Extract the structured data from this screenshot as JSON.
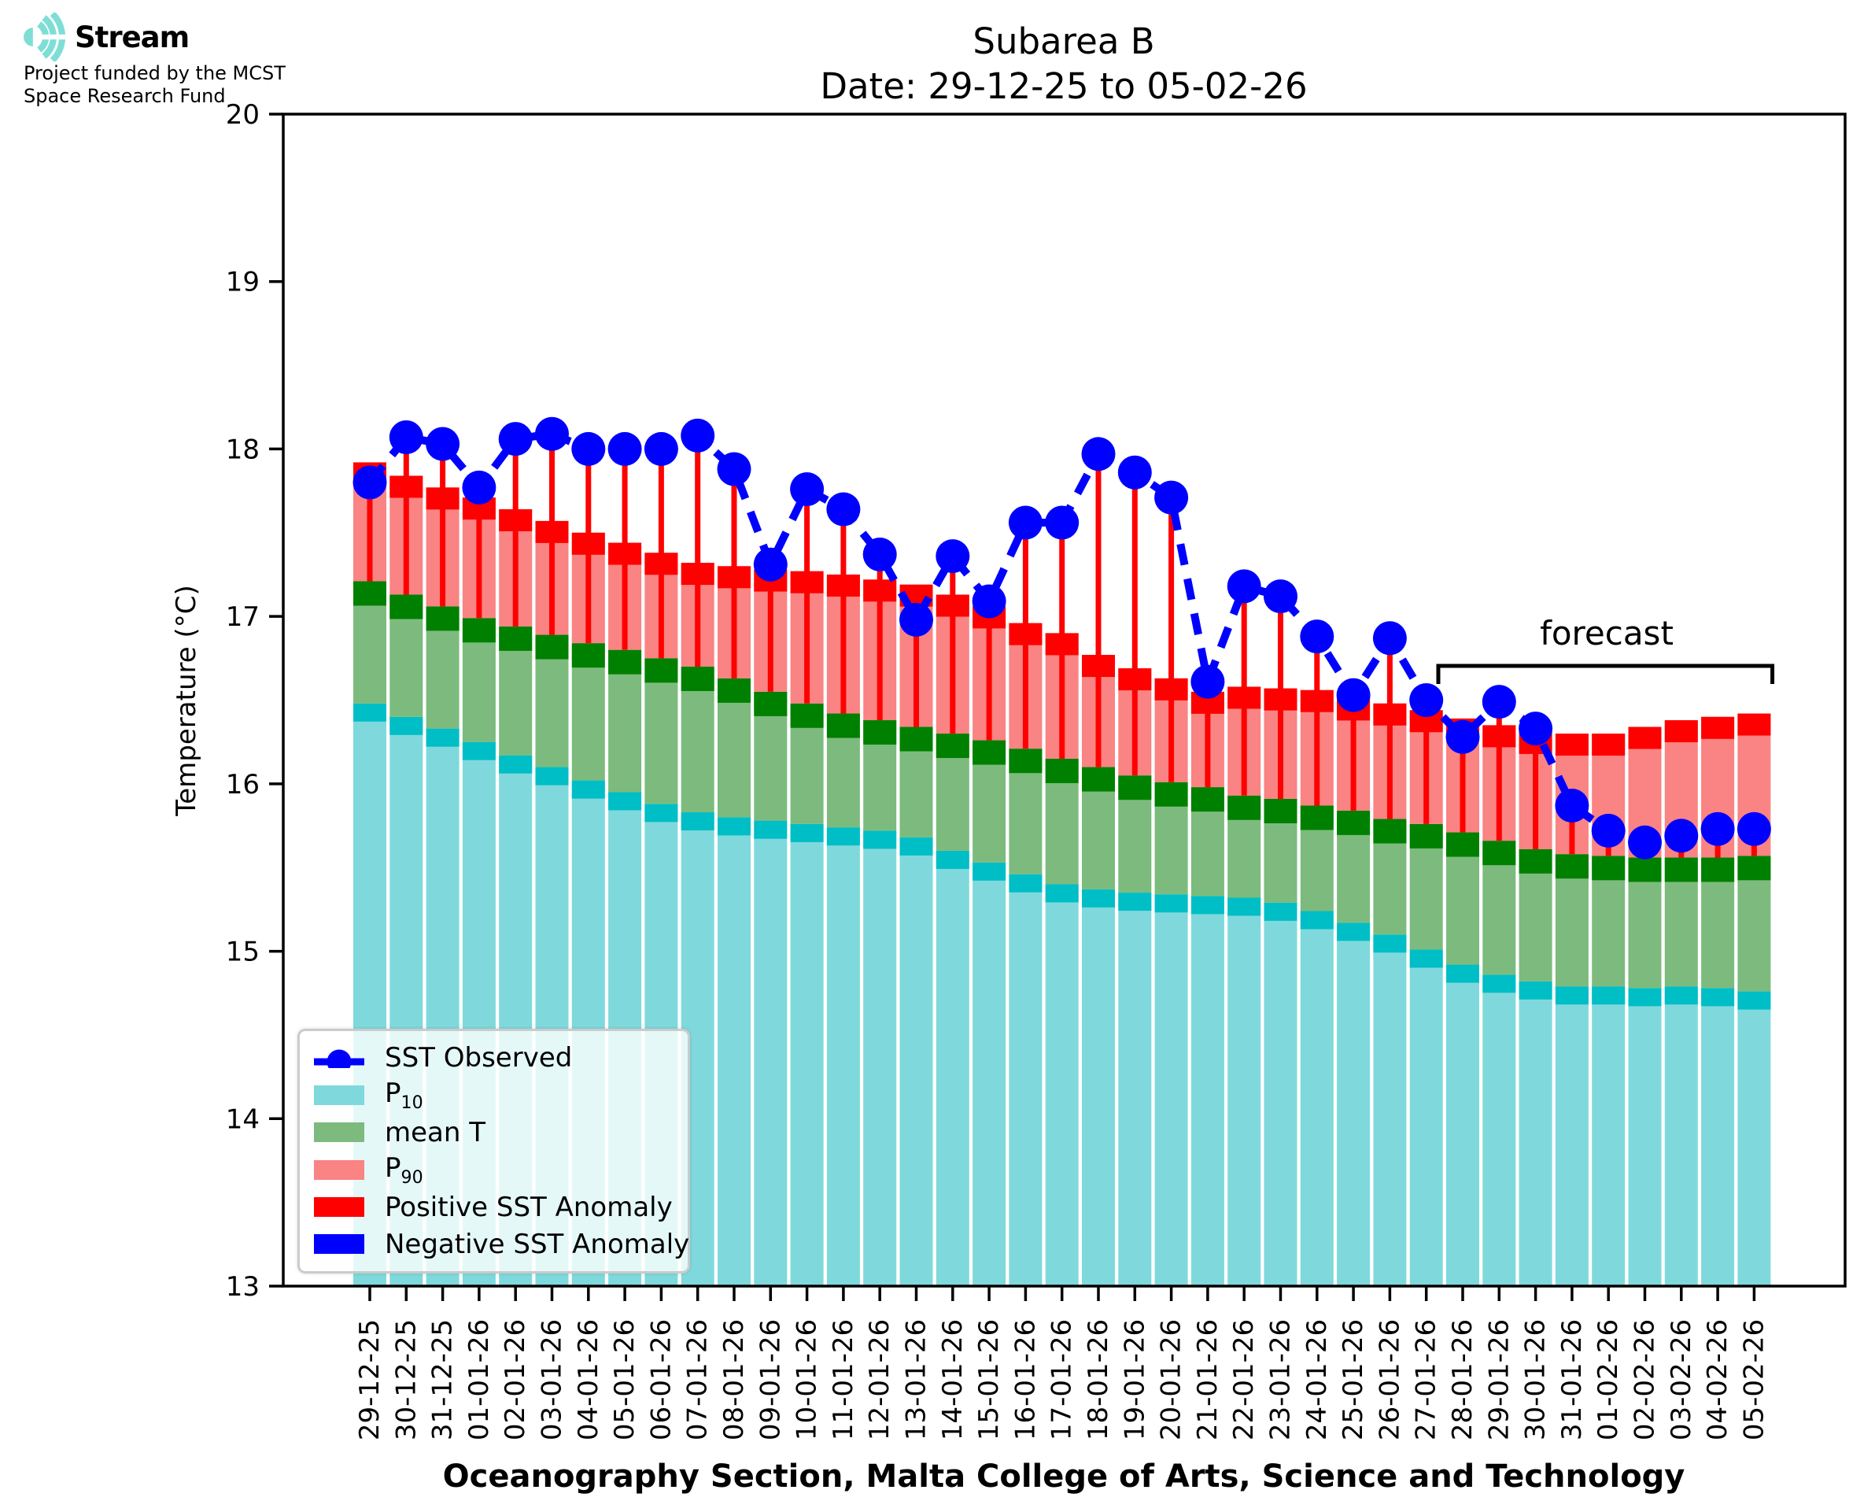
{
  "logo": {
    "brand": "Stream",
    "tagline_line1": "Project funded by the MCST",
    "tagline_line2": "Space Research Fund",
    "icon": "sound-wave-arcs-icon",
    "icon_color": "#7EDED6"
  },
  "title": {
    "line1": "Subarea B",
    "line2": "Date: 29-12-25 to 05-02-26"
  },
  "footer": {
    "text": "Oceanography Section, Malta College of Arts, Science and Technology"
  },
  "legend": {
    "entries": [
      {
        "label": "SST Observed",
        "swatch": "dashed-line-with-dot",
        "color": "#0000FF"
      },
      {
        "label": "P",
        "label_sub": "10",
        "swatch": "patch",
        "color": "#7FD9DC"
      },
      {
        "label": "mean T",
        "swatch": "patch",
        "color": "#7CBB7D"
      },
      {
        "label": "P",
        "label_sub": "90",
        "swatch": "patch",
        "color": "#FA8383"
      },
      {
        "label": "Positive SST Anomaly",
        "swatch": "patch",
        "color": "#FF0000"
      },
      {
        "label": "Negative SST Anomaly",
        "swatch": "patch",
        "color": "#0000FF"
      }
    ]
  },
  "chart_data": {
    "type": "bar",
    "subtype": "stacked-climatology-bands-with-sst-anomaly-stems",
    "title": "Subarea B",
    "subtitle": "Date: 29-12-25 to 05-02-26",
    "ylabel": "Temperature (°C)",
    "xlabel": "Oceanography Section, Malta College of Arts, Science and Technology",
    "ylim": [
      13,
      20
    ],
    "yticks": [
      13,
      14,
      15,
      16,
      17,
      18,
      19,
      20
    ],
    "grid": false,
    "legend_position": "lower left",
    "categories": [
      "29-12-25",
      "30-12-25",
      "31-12-25",
      "01-01-26",
      "02-01-26",
      "03-01-26",
      "04-01-26",
      "05-01-26",
      "06-01-26",
      "07-01-26",
      "08-01-26",
      "09-01-26",
      "10-01-26",
      "11-01-26",
      "12-01-26",
      "13-01-26",
      "14-01-26",
      "15-01-26",
      "16-01-26",
      "17-01-26",
      "18-01-26",
      "19-01-26",
      "20-01-26",
      "21-01-26",
      "22-01-26",
      "23-01-26",
      "24-01-26",
      "25-01-26",
      "26-01-26",
      "27-01-26",
      "28-01-26",
      "29-01-26",
      "30-01-26",
      "31-01-26",
      "01-02-26",
      "02-02-26",
      "03-02-26",
      "04-02-26",
      "05-02-26"
    ],
    "series": [
      {
        "name": "P10",
        "type": "band",
        "fill": "#7FD9DC",
        "cap_color": "#00BEC6",
        "values": [
          16.48,
          16.4,
          16.33,
          16.25,
          16.17,
          16.1,
          16.02,
          15.95,
          15.88,
          15.83,
          15.8,
          15.78,
          15.76,
          15.74,
          15.72,
          15.68,
          15.6,
          15.53,
          15.46,
          15.4,
          15.37,
          15.35,
          15.34,
          15.33,
          15.32,
          15.29,
          15.24,
          15.17,
          15.1,
          15.01,
          14.92,
          14.86,
          14.82,
          14.79,
          14.79,
          14.78,
          14.79,
          14.78,
          14.76
        ]
      },
      {
        "name": "mean T",
        "type": "band",
        "fill": "#7CBB7D",
        "cap_color": "#008000",
        "values": [
          17.21,
          17.13,
          17.06,
          16.99,
          16.94,
          16.89,
          16.84,
          16.8,
          16.75,
          16.7,
          16.63,
          16.55,
          16.48,
          16.42,
          16.38,
          16.34,
          16.3,
          16.26,
          16.21,
          16.15,
          16.1,
          16.05,
          16.01,
          15.98,
          15.93,
          15.91,
          15.87,
          15.84,
          15.79,
          15.76,
          15.71,
          15.66,
          15.61,
          15.58,
          15.57,
          15.56,
          15.56,
          15.56,
          15.57
        ]
      },
      {
        "name": "P90",
        "type": "band",
        "fill": "#FA8383",
        "cap_color": "#FF0000",
        "values": [
          17.92,
          17.84,
          17.77,
          17.71,
          17.64,
          17.57,
          17.5,
          17.44,
          17.38,
          17.32,
          17.3,
          17.28,
          17.27,
          17.25,
          17.22,
          17.19,
          17.13,
          17.06,
          16.96,
          16.9,
          16.77,
          16.69,
          16.63,
          16.55,
          16.58,
          16.57,
          16.56,
          16.51,
          16.48,
          16.44,
          16.39,
          16.35,
          16.31,
          16.3,
          16.3,
          16.34,
          16.38,
          16.4,
          16.42
        ]
      },
      {
        "name": "SST Observed",
        "type": "line",
        "style": "dashed",
        "marker": "circle",
        "color": "#0000FF",
        "values": [
          17.8,
          18.07,
          18.03,
          17.77,
          18.06,
          18.09,
          18.0,
          18.0,
          18.0,
          18.08,
          17.88,
          17.31,
          17.76,
          17.64,
          17.37,
          16.98,
          17.36,
          17.09,
          17.56,
          17.56,
          17.97,
          17.86,
          17.71,
          16.61,
          17.18,
          17.12,
          16.88,
          16.53,
          16.87,
          16.5,
          16.28,
          16.49,
          16.33,
          15.87,
          15.72,
          15.65,
          15.69,
          15.73,
          15.73
        ]
      }
    ],
    "anomaly_stems": {
      "baseline": "mean T",
      "positive_color": "#FF0000",
      "negative_color": "#0000FF"
    },
    "forecast_span": {
      "label": "forecast",
      "start": "28-01-26",
      "end": "05-02-26",
      "start_index": 30
    }
  }
}
